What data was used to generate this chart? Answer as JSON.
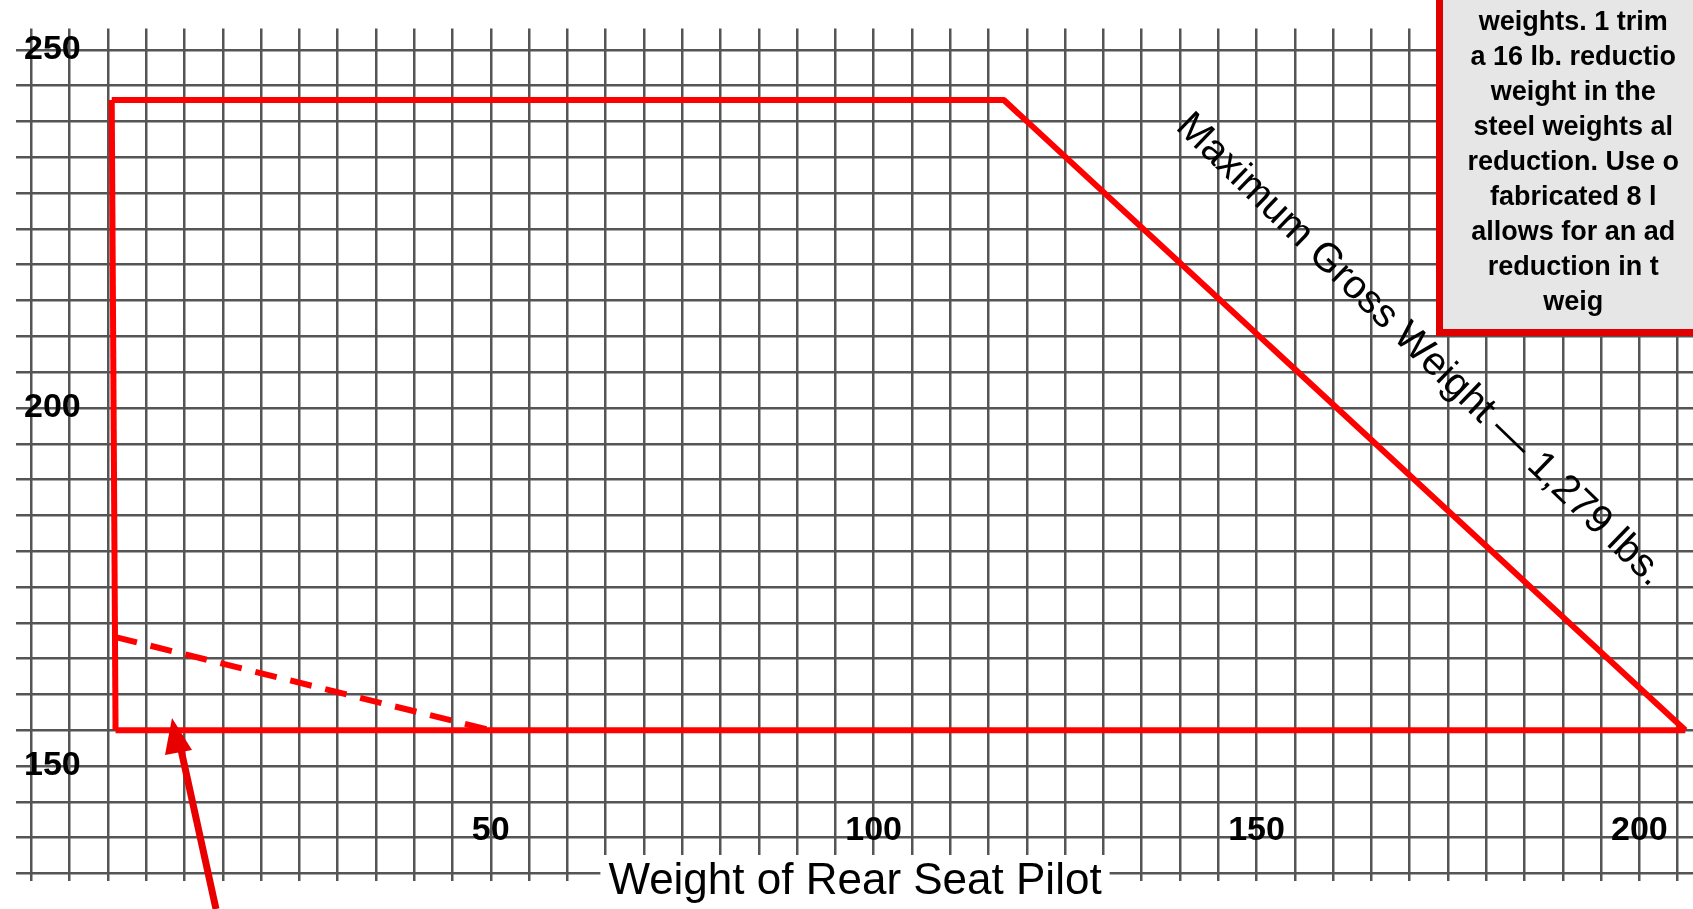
{
  "chart_data": {
    "type": "line",
    "xlabel": "Weight of Rear Seat Pilot",
    "xlim": [
      -12,
      207
    ],
    "ylim": [
      134,
      253
    ],
    "xticks": [
      {
        "value": -10,
        "label": null
      },
      {
        "value": -5,
        "label": null
      },
      {
        "value": 0,
        "label": null
      },
      {
        "value": 5,
        "label": null
      },
      {
        "value": 10,
        "label": null
      },
      {
        "value": 15,
        "label": null
      },
      {
        "value": 20,
        "label": null
      },
      {
        "value": 25,
        "label": null
      },
      {
        "value": 30,
        "label": null
      },
      {
        "value": 35,
        "label": null
      },
      {
        "value": 40,
        "label": null
      },
      {
        "value": 45,
        "label": null
      },
      50,
      {
        "value": 55,
        "label": null
      },
      {
        "value": 60,
        "label": null
      },
      {
        "value": 65,
        "label": null
      },
      {
        "value": 70,
        "label": null
      },
      {
        "value": 75,
        "label": null
      },
      {
        "value": 80,
        "label": null
      },
      {
        "value": 85,
        "label": null
      },
      {
        "value": 90,
        "label": null
      },
      {
        "value": 95,
        "label": null
      },
      100,
      {
        "value": 105,
        "label": null
      },
      {
        "value": 110,
        "label": null
      },
      {
        "value": 115,
        "label": null
      },
      {
        "value": 120,
        "label": null
      },
      {
        "value": 125,
        "label": null
      },
      {
        "value": 130,
        "label": null
      },
      {
        "value": 135,
        "label": null
      },
      {
        "value": 140,
        "label": null
      },
      {
        "value": 145,
        "label": null
      },
      150,
      {
        "value": 155,
        "label": null
      },
      {
        "value": 160,
        "label": null
      },
      {
        "value": 165,
        "label": null
      },
      {
        "value": 170,
        "label": null
      },
      {
        "value": 175,
        "label": null
      },
      {
        "value": 180,
        "label": null
      },
      {
        "value": 185,
        "label": null
      },
      {
        "value": 190,
        "label": null
      },
      {
        "value": 195,
        "label": null
      },
      200,
      {
        "value": 205,
        "label": null
      }
    ],
    "yticks": [
      {
        "value": 135,
        "label": null
      },
      {
        "value": 140,
        "label": null
      },
      {
        "value": 145,
        "label": null
      },
      150,
      {
        "value": 155,
        "label": null
      },
      {
        "value": 160,
        "label": null
      },
      {
        "value": 165,
        "label": null
      },
      {
        "value": 170,
        "label": null
      },
      {
        "value": 175,
        "label": null
      },
      {
        "value": 180,
        "label": null
      },
      {
        "value": 185,
        "label": null
      },
      {
        "value": 190,
        "label": null
      },
      {
        "value": 195,
        "label": null
      },
      200,
      {
        "value": 205,
        "label": null
      },
      {
        "value": 210,
        "label": null
      },
      {
        "value": 215,
        "label": null
      },
      {
        "value": 220,
        "label": null
      },
      {
        "value": 225,
        "label": null
      },
      {
        "value": 230,
        "label": null
      },
      {
        "value": 235,
        "label": null
      },
      {
        "value": 240,
        "label": null
      },
      {
        "value": 245,
        "label": null
      },
      250
    ],
    "grid": true,
    "marker": "none",
    "series": [
      {
        "color": "#ff0000",
        "x": [
          0.5,
          1
        ],
        "values": [
          243,
          155
        ],
        "line_style": "solid"
      },
      {
        "color": "#ff0000",
        "x": [
          0.5,
          117,
          206
        ],
        "values": [
          243,
          243,
          155
        ],
        "line_style": "solid"
      },
      {
        "color": "#ff0000",
        "x": [
          1,
          206
        ],
        "values": [
          155,
          155
        ],
        "line_style": "solid"
      },
      {
        "color": "#ff0000",
        "x": [
          1,
          50
        ],
        "values": [
          168,
          155
        ],
        "line_style": "dashed"
      }
    ],
    "annotations": [
      "Maximum Gross Weight — 1,279 lbs.",
      "weights. 1 trim\na 16 lb. reductio\nweight in the\nsteel weights al\nreduction. Use o\nfabricated 8 l\nallows for an ad\nreduction in t\nweig"
    ]
  }
}
